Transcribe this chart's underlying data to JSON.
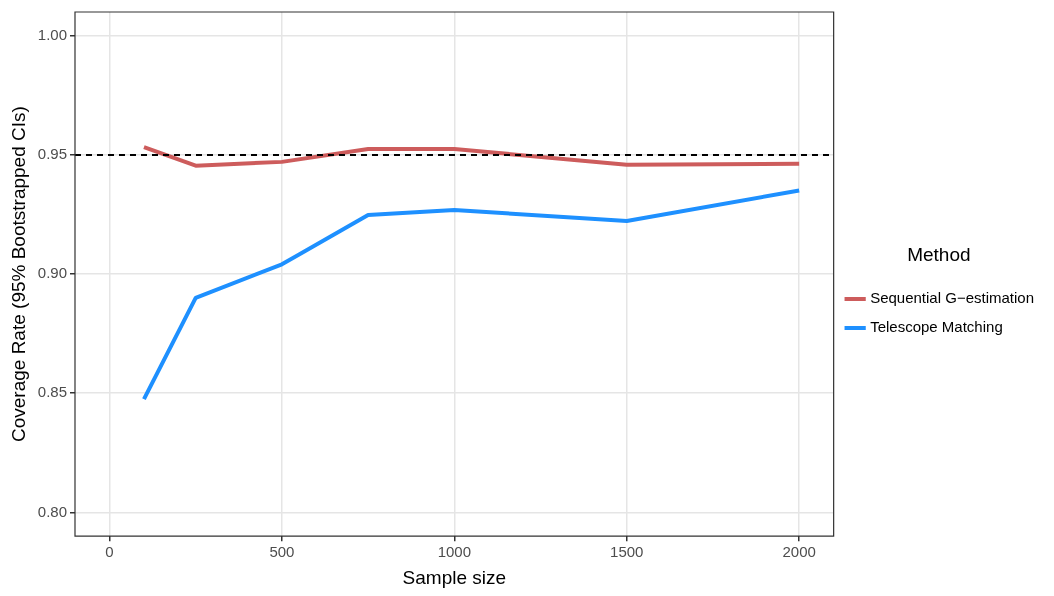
{
  "chart_data": {
    "type": "line",
    "xlabel": "Sample size",
    "ylabel": "Coverage Rate (95% Bootstrapped CIs)",
    "legend_title": "Method",
    "x": [
      100,
      250,
      500,
      750,
      1000,
      1500,
      2000
    ],
    "series": [
      {
        "name": "Sequential G−estimation",
        "color": "#cd5c5c",
        "values": [
          0.9533,
          0.9455,
          0.9471,
          0.9525,
          0.9525,
          0.9459,
          0.9463
        ]
      },
      {
        "name": "Telescope Matching",
        "color": "#1e90ff",
        "values": [
          0.8475,
          0.89,
          0.9041,
          0.9248,
          0.9269,
          0.9223,
          0.9351
        ]
      }
    ],
    "xlim": [
      -100,
      2100
    ],
    "xticks": [
      0,
      500,
      1000,
      1500,
      2000
    ],
    "ylim": [
      0.79,
      1.01
    ],
    "yticks": [
      {
        "value": 0.8,
        "label": "0.80"
      },
      {
        "value": 0.85,
        "label": "0.85"
      },
      {
        "value": 0.9,
        "label": "0.90"
      },
      {
        "value": 0.95,
        "label": "0.95"
      },
      {
        "value": 1.0,
        "label": "1.00"
      }
    ],
    "ref_lines": [
      {
        "axis": "y",
        "value": 0.95,
        "line_style": "dashed",
        "color": "#000000"
      }
    ],
    "grid": true,
    "legend": "right",
    "marker": "none",
    "line_style": "solid"
  }
}
